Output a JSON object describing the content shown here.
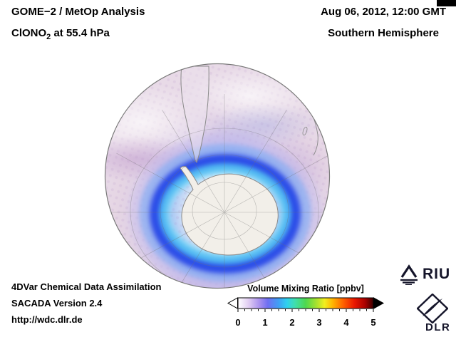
{
  "header": {
    "line1": "GOME−2 / MetOp Analysis",
    "compound_prefix": "ClONO",
    "compound_sub": "2",
    "compound_suffix": " at 55.4 hPa",
    "datetime": "Aug 06, 2012, 12:00 GMT",
    "hemisphere": "Southern Hemisphere"
  },
  "footer": {
    "line1": "4DVar Chemical Data Assimilation",
    "line2": "SACADA Version 2.4",
    "line3": "http://wdc.dlr.de"
  },
  "colorbar": {
    "title": "Volume Mixing Ratio [ppbv]",
    "min": 0,
    "max": 5,
    "ticks": [
      "0",
      "1",
      "2",
      "3",
      "4",
      "5"
    ],
    "arrow_left_color": "#ffffff",
    "arrow_right_color": "#000000",
    "stops": [
      {
        "value": 0.0,
        "color": "#ffffff"
      },
      {
        "value": 0.4,
        "color": "#e0ccf2"
      },
      {
        "value": 0.8,
        "color": "#a890ee"
      },
      {
        "value": 1.1,
        "color": "#6f6ff2"
      },
      {
        "value": 1.5,
        "color": "#3f9ff4"
      },
      {
        "value": 1.8,
        "color": "#2fd0f0"
      },
      {
        "value": 2.1,
        "color": "#3fdfae"
      },
      {
        "value": 2.5,
        "color": "#4ed84e"
      },
      {
        "value": 2.9,
        "color": "#a8e22e"
      },
      {
        "value": 3.2,
        "color": "#f2ee1f"
      },
      {
        "value": 3.5,
        "color": "#ffb400"
      },
      {
        "value": 3.9,
        "color": "#ff5f00"
      },
      {
        "value": 4.3,
        "color": "#ea1800"
      },
      {
        "value": 4.7,
        "color": "#a80000"
      },
      {
        "value": 5.0,
        "color": "#3c0000"
      }
    ]
  },
  "logos": {
    "riu": "RIU",
    "dlr": "DLR"
  },
  "colors": {
    "background": "#ffffff",
    "text": "#000000",
    "field_low": "#e7d8e6",
    "field_ring_blue": "#2e4fe8",
    "field_ring_cyan": "#4fbcf2",
    "land": "#f2efe9"
  }
}
